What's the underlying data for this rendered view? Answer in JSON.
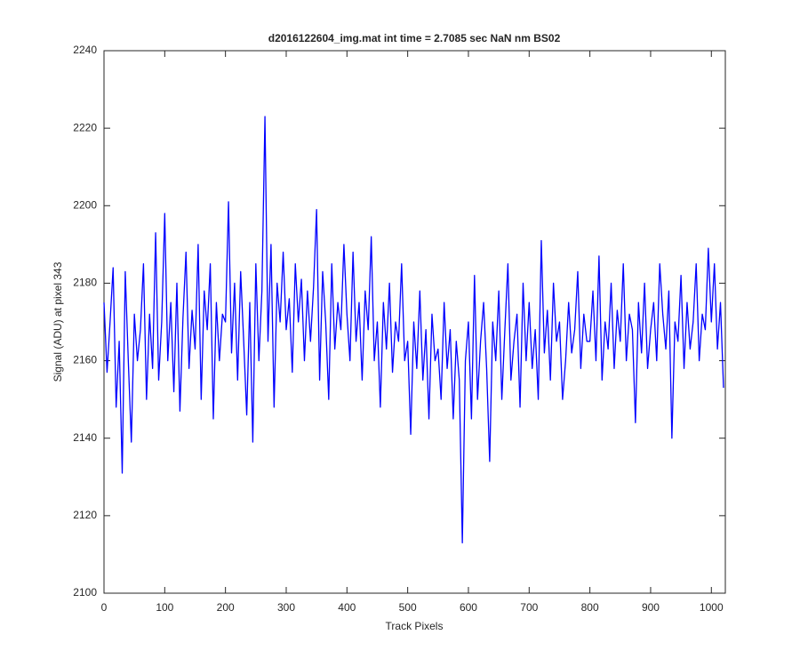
{
  "chart_data": {
    "type": "line",
    "title": "d2016122604_img.mat int time = 2.7085 sec  NaN nm BS02",
    "x_label": "Track Pixels",
    "y_label": "Signal (ADU) at pixel 343",
    "xlim": [
      0,
      1023
    ],
    "xticks": [
      0,
      100,
      200,
      300,
      400,
      500,
      600,
      700,
      800,
      900,
      1000
    ],
    "ylim": [
      2100,
      2240
    ],
    "yticks": [
      2100,
      2120,
      2140,
      2160,
      2180,
      2200,
      2220,
      2240
    ],
    "x": [
      0,
      5,
      10,
      15,
      20,
      25,
      30,
      35,
      40,
      45,
      50,
      55,
      60,
      65,
      70,
      75,
      80,
      85,
      90,
      95,
      100,
      105,
      110,
      115,
      120,
      125,
      130,
      135,
      140,
      145,
      150,
      155,
      160,
      165,
      170,
      175,
      180,
      185,
      190,
      195,
      200,
      205,
      210,
      215,
      220,
      225,
      230,
      235,
      240,
      245,
      250,
      255,
      260,
      265,
      270,
      275,
      280,
      285,
      290,
      295,
      300,
      305,
      310,
      315,
      320,
      325,
      330,
      335,
      340,
      345,
      350,
      355,
      360,
      365,
      370,
      375,
      380,
      385,
      390,
      395,
      400,
      405,
      410,
      415,
      420,
      425,
      430,
      435,
      440,
      445,
      450,
      455,
      460,
      465,
      470,
      475,
      480,
      485,
      490,
      495,
      500,
      505,
      510,
      515,
      520,
      525,
      530,
      535,
      540,
      545,
      550,
      555,
      560,
      565,
      570,
      575,
      580,
      585,
      590,
      595,
      600,
      605,
      610,
      615,
      620,
      625,
      630,
      635,
      640,
      645,
      650,
      655,
      660,
      665,
      670,
      675,
      680,
      685,
      690,
      695,
      700,
      705,
      710,
      715,
      720,
      725,
      730,
      735,
      740,
      745,
      750,
      755,
      760,
      765,
      770,
      775,
      780,
      785,
      790,
      795,
      800,
      805,
      810,
      815,
      820,
      825,
      830,
      835,
      840,
      845,
      850,
      855,
      860,
      865,
      870,
      875,
      880,
      885,
      890,
      895,
      900,
      905,
      910,
      915,
      920,
      925,
      930,
      935,
      940,
      945,
      950,
      955,
      960,
      965,
      970,
      975,
      980,
      985,
      990,
      995,
      1000,
      1005,
      1010,
      1015,
      1020
    ],
    "series": [
      {
        "name": "signal",
        "color": "#0000ff",
        "values": [
          2175,
          2157,
          2170,
          2184,
          2148,
          2165,
          2131,
          2183,
          2160,
          2139,
          2172,
          2160,
          2168,
          2185,
          2150,
          2172,
          2158,
          2193,
          2155,
          2170,
          2198,
          2160,
          2175,
          2152,
          2180,
          2147,
          2171,
          2188,
          2158,
          2173,
          2163,
          2190,
          2150,
          2178,
          2168,
          2185,
          2145,
          2175,
          2160,
          2172,
          2170,
          2201,
          2162,
          2180,
          2155,
          2183,
          2165,
          2146,
          2175,
          2139,
          2185,
          2160,
          2178,
          2223,
          2165,
          2190,
          2148,
          2180,
          2170,
          2188,
          2168,
          2176,
          2157,
          2185,
          2170,
          2181,
          2160,
          2178,
          2165,
          2179,
          2199,
          2155,
          2183,
          2170,
          2150,
          2185,
          2163,
          2175,
          2168,
          2190,
          2172,
          2160,
          2188,
          2165,
          2175,
          2155,
          2178,
          2168,
          2192,
          2160,
          2170,
          2148,
          2175,
          2163,
          2180,
          2157,
          2170,
          2165,
          2185,
          2160,
          2165,
          2141,
          2170,
          2158,
          2178,
          2155,
          2168,
          2145,
          2172,
          2160,
          2163,
          2150,
          2175,
          2158,
          2168,
          2145,
          2165,
          2155,
          2113,
          2160,
          2170,
          2145,
          2182,
          2150,
          2165,
          2175,
          2158,
          2134,
          2170,
          2160,
          2178,
          2150,
          2168,
          2185,
          2155,
          2165,
          2172,
          2148,
          2180,
          2160,
          2175,
          2158,
          2168,
          2150,
          2191,
          2162,
          2173,
          2155,
          2180,
          2165,
          2170,
          2150,
          2160,
          2175,
          2162,
          2168,
          2183,
          2158,
          2172,
          2165,
          2165,
          2178,
          2160,
          2187,
          2155,
          2170,
          2163,
          2180,
          2158,
          2173,
          2165,
          2185,
          2160,
          2172,
          2168,
          2144,
          2175,
          2162,
          2180,
          2158,
          2168,
          2175,
          2160,
          2185,
          2172,
          2163,
          2178,
          2140,
          2170,
          2165,
          2182,
          2158,
          2175,
          2163,
          2170,
          2185,
          2160,
          2172,
          2168,
          2189,
          2170,
          2185,
          2163,
          2175,
          2153
        ]
      }
    ]
  }
}
